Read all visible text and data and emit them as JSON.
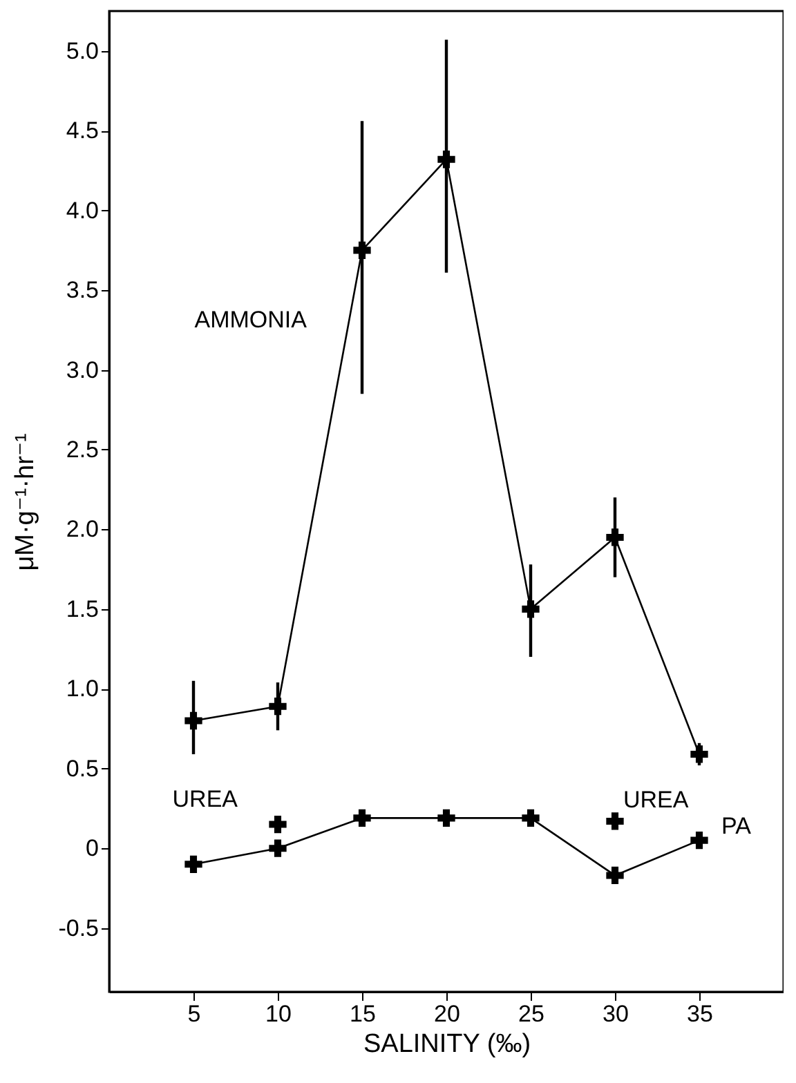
{
  "chart_data": {
    "type": "line",
    "xlabel": "SALINITY (‰)",
    "ylabel": "μM·g⁻¹·hr⁻¹",
    "x": [
      5,
      10,
      15,
      20,
      25,
      30,
      35
    ],
    "series": [
      {
        "name": "AMMONIA",
        "color": "#000000",
        "values": [
          0.8,
          0.89,
          3.75,
          4.32,
          1.5,
          1.95,
          0.59
        ],
        "errors": [
          [
            0.59,
            1.05
          ],
          [
            0.74,
            1.04
          ],
          [
            2.85,
            4.56
          ],
          [
            3.61,
            5.07
          ],
          [
            1.2,
            1.78
          ],
          [
            1.7,
            2.2
          ],
          [
            0.52,
            0.66
          ]
        ]
      },
      {
        "name": "PA",
        "color": "#000000",
        "values": [
          -0.1,
          0.0,
          0.19,
          0.19,
          0.19,
          -0.17,
          0.05
        ]
      },
      {
        "name": "UREA",
        "type": "scatter",
        "color": "#000000",
        "values": [
          null,
          0.15,
          null,
          null,
          null,
          0.17,
          null
        ]
      }
    ],
    "xlim": [
      0,
      40
    ],
    "xticks": [
      5,
      10,
      15,
      20,
      25,
      30,
      35
    ],
    "ylim": [
      -0.9,
      5.25
    ],
    "yticks": [
      {
        "value": -0.5,
        "label": "-0.5"
      },
      0,
      {
        "value": 0.5,
        "label": "0.5"
      },
      {
        "value": 1,
        "label": "1.0"
      },
      {
        "value": 1.5,
        "label": "1.5"
      },
      {
        "value": 2,
        "label": "2.0"
      },
      {
        "value": 2.5,
        "label": "2.5"
      },
      {
        "value": 3,
        "label": "3.0"
      },
      {
        "value": 3.5,
        "label": "3.5"
      },
      {
        "value": 4,
        "label": "4.0"
      },
      {
        "value": 4.5,
        "label": "4.5"
      },
      {
        "value": 5,
        "label": "5.0"
      }
    ],
    "marker": "cross"
  }
}
